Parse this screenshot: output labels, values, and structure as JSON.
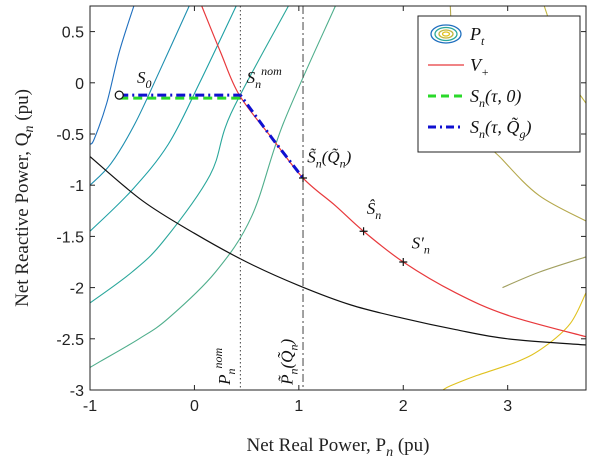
{
  "chart_data": {
    "type": "line",
    "title": "",
    "xlabel": "Net Real Power, P",
    "xlabel_sub": "n",
    "xlabel_unit": " (pu)",
    "ylabel": "Net Reactive Power, Q",
    "ylabel_sub": "n",
    "ylabel_unit": " (pu)",
    "xlim": [
      -1,
      3.75
    ],
    "ylim": [
      -3,
      0.75
    ],
    "xticks": [
      -1,
      0,
      1,
      2,
      3
    ],
    "xtick_labels": [
      "-1",
      "0",
      "1",
      "2",
      "3"
    ],
    "yticks": [
      0.5,
      0,
      -0.5,
      -1,
      -1.5,
      -2,
      -2.5,
      -3
    ],
    "ytick_labels": [
      "0.5",
      "0",
      "-0.5",
      "-1",
      "-1.5",
      "-2",
      "-2.5",
      "-3"
    ],
    "grid": false,
    "legend_position": "top-right",
    "legend": [
      {
        "label": "P",
        "sub": "t",
        "style": "contour-icon"
      },
      {
        "label": "V",
        "sub": "+",
        "style": "thin-red",
        "color": "#e8393c"
      },
      {
        "label": "S",
        "sub": "n",
        "tail": "(τ, 0)",
        "style": "dashed-green",
        "color": "#2ad92a"
      },
      {
        "label": "S",
        "sub": "n",
        "tail": "(τ, Q̃",
        "tail_sub": "g",
        "tail_end": ")",
        "style": "dashdot-blue",
        "color": "#1010d0"
      }
    ],
    "contours": [
      {
        "color": "#1f6fbf",
        "points": [
          [
            -0.58,
            0.75
          ],
          [
            -0.72,
            0.3
          ],
          [
            -0.84,
            -0.2
          ],
          [
            -0.96,
            -0.55
          ],
          [
            -1.0,
            -0.6
          ]
        ]
      },
      {
        "color": "#1e8fb0",
        "points": [
          [
            -0.05,
            0.75
          ],
          [
            -0.34,
            0.1
          ],
          [
            -0.57,
            -0.4
          ],
          [
            -0.8,
            -0.79
          ],
          [
            -1.0,
            -1.0
          ]
        ]
      },
      {
        "color": "#1ea0a5",
        "points": [
          [
            0.4,
            0.75
          ],
          [
            0.05,
            0.0
          ],
          [
            -0.25,
            -0.6
          ],
          [
            -0.6,
            -1.05
          ],
          [
            -1.0,
            -1.45
          ]
        ]
      },
      {
        "color": "#2aa79b",
        "points": [
          [
            0.9,
            0.75
          ],
          [
            0.35,
            -0.3
          ],
          [
            0.15,
            -0.9
          ],
          [
            -0.3,
            -1.55
          ],
          [
            -0.6,
            -1.85
          ],
          [
            -1.0,
            -2.15
          ]
        ]
      },
      {
        "color": "#4fae8c",
        "points": [
          [
            1.35,
            0.75
          ],
          [
            0.85,
            -0.4
          ],
          [
            0.55,
            -1.3
          ],
          [
            0.2,
            -1.85
          ],
          [
            -0.25,
            -2.3
          ],
          [
            -0.53,
            -2.5
          ],
          [
            -0.9,
            -2.72
          ],
          [
            -1.0,
            -2.78
          ]
        ]
      },
      {
        "color": "#b5a84c",
        "points": [
          [
            2.45,
            0.75
          ],
          [
            2.5,
            0.2
          ],
          [
            2.75,
            -0.5
          ],
          [
            2.95,
            -0.75
          ],
          [
            3.3,
            -1.1
          ],
          [
            3.75,
            -1.35
          ]
        ]
      },
      {
        "color": "#c2b63c",
        "points": [
          [
            3.35,
            0.75
          ],
          [
            3.5,
            0.3
          ],
          [
            3.62,
            0.0
          ],
          [
            3.75,
            -0.2
          ]
        ]
      },
      {
        "color": "#a2a060",
        "points": [
          [
            2.95,
            -2.0
          ],
          [
            3.3,
            -1.85
          ],
          [
            3.75,
            -1.7
          ]
        ]
      },
      {
        "color": "#e0c21f",
        "points": [
          [
            3.75,
            -2.05
          ],
          [
            3.6,
            -2.35
          ],
          [
            3.35,
            -2.58
          ],
          [
            3.1,
            -2.72
          ],
          [
            2.7,
            -2.86
          ],
          [
            2.45,
            -2.96
          ],
          [
            2.38,
            -3.0
          ]
        ]
      }
    ],
    "black_curve": {
      "color": "#111111",
      "points": [
        [
          -1.0,
          -0.72
        ],
        [
          -0.5,
          -1.15
        ],
        [
          0.0,
          -1.47
        ],
        [
          0.5,
          -1.75
        ],
        [
          1.0,
          -1.98
        ],
        [
          1.5,
          -2.17
        ],
        [
          2.0,
          -2.3
        ],
        [
          2.5,
          -2.41
        ],
        [
          3.0,
          -2.5
        ],
        [
          3.75,
          -2.56
        ]
      ]
    },
    "v_plus_curve": {
      "color": "#e8393c",
      "points": [
        [
          0.07,
          0.75
        ],
        [
          0.25,
          0.3
        ],
        [
          0.43,
          -0.12
        ],
        [
          0.75,
          -0.55
        ],
        [
          1.04,
          -0.93
        ],
        [
          1.35,
          -1.2
        ],
        [
          1.62,
          -1.45
        ],
        [
          2.0,
          -1.75
        ],
        [
          2.5,
          -2.05
        ],
        [
          3.0,
          -2.27
        ],
        [
          3.75,
          -2.48
        ]
      ]
    },
    "s_tau_0": {
      "color": "#2ad92a",
      "points": [
        [
          -0.72,
          -0.15
        ],
        [
          0.44,
          -0.15
        ]
      ]
    },
    "s_tau_q": {
      "color": "#1010d0",
      "points": [
        [
          -0.72,
          -0.12
        ],
        [
          0.44,
          -0.12
        ],
        [
          0.75,
          -0.55
        ],
        [
          1.04,
          -0.93
        ]
      ]
    },
    "vline_dotted": {
      "x": 0.44,
      "color": "#444444"
    },
    "vline_dashdot": {
      "x": 1.04,
      "color": "#444444"
    },
    "markers": [
      {
        "shape": "circle",
        "x": -0.72,
        "y": -0.12
      },
      {
        "shape": "plus",
        "x": 1.04,
        "y": -0.93
      },
      {
        "shape": "plus",
        "x": 1.62,
        "y": -1.45
      },
      {
        "shape": "plus",
        "x": 2.0,
        "y": -1.75
      }
    ],
    "annotations": [
      {
        "id": "s0",
        "text": "S",
        "sub": "0",
        "x": -0.55,
        "y": 0.0
      },
      {
        "id": "snnom",
        "text": "S",
        "sub": "n",
        "sup": "nom",
        "x": 0.5,
        "y": 0.0
      },
      {
        "id": "sn-qn",
        "text": "S̃",
        "sub": "n",
        "tail": "(Q̃",
        "tail_sub": "n",
        "tail_end": ")",
        "x": 1.08,
        "y": -0.78
      },
      {
        "id": "sn-hat",
        "text": "Ŝ",
        "sub": "n",
        "x": 1.65,
        "y": -1.28
      },
      {
        "id": "sn-prime",
        "text": "S′",
        "sub": "n",
        "x": 2.08,
        "y": -1.62
      }
    ],
    "vertical_annotations": [
      {
        "id": "pnnom",
        "text": "P",
        "sub": "n",
        "sup": "nom",
        "x": 0.34,
        "y": -2.95
      },
      {
        "id": "pn-qn",
        "text": "P̃",
        "sub": "n",
        "tail": "(Q̃",
        "tail_sub": "n",
        "tail_end": ")",
        "x": 0.94,
        "y": -2.95
      }
    ]
  }
}
